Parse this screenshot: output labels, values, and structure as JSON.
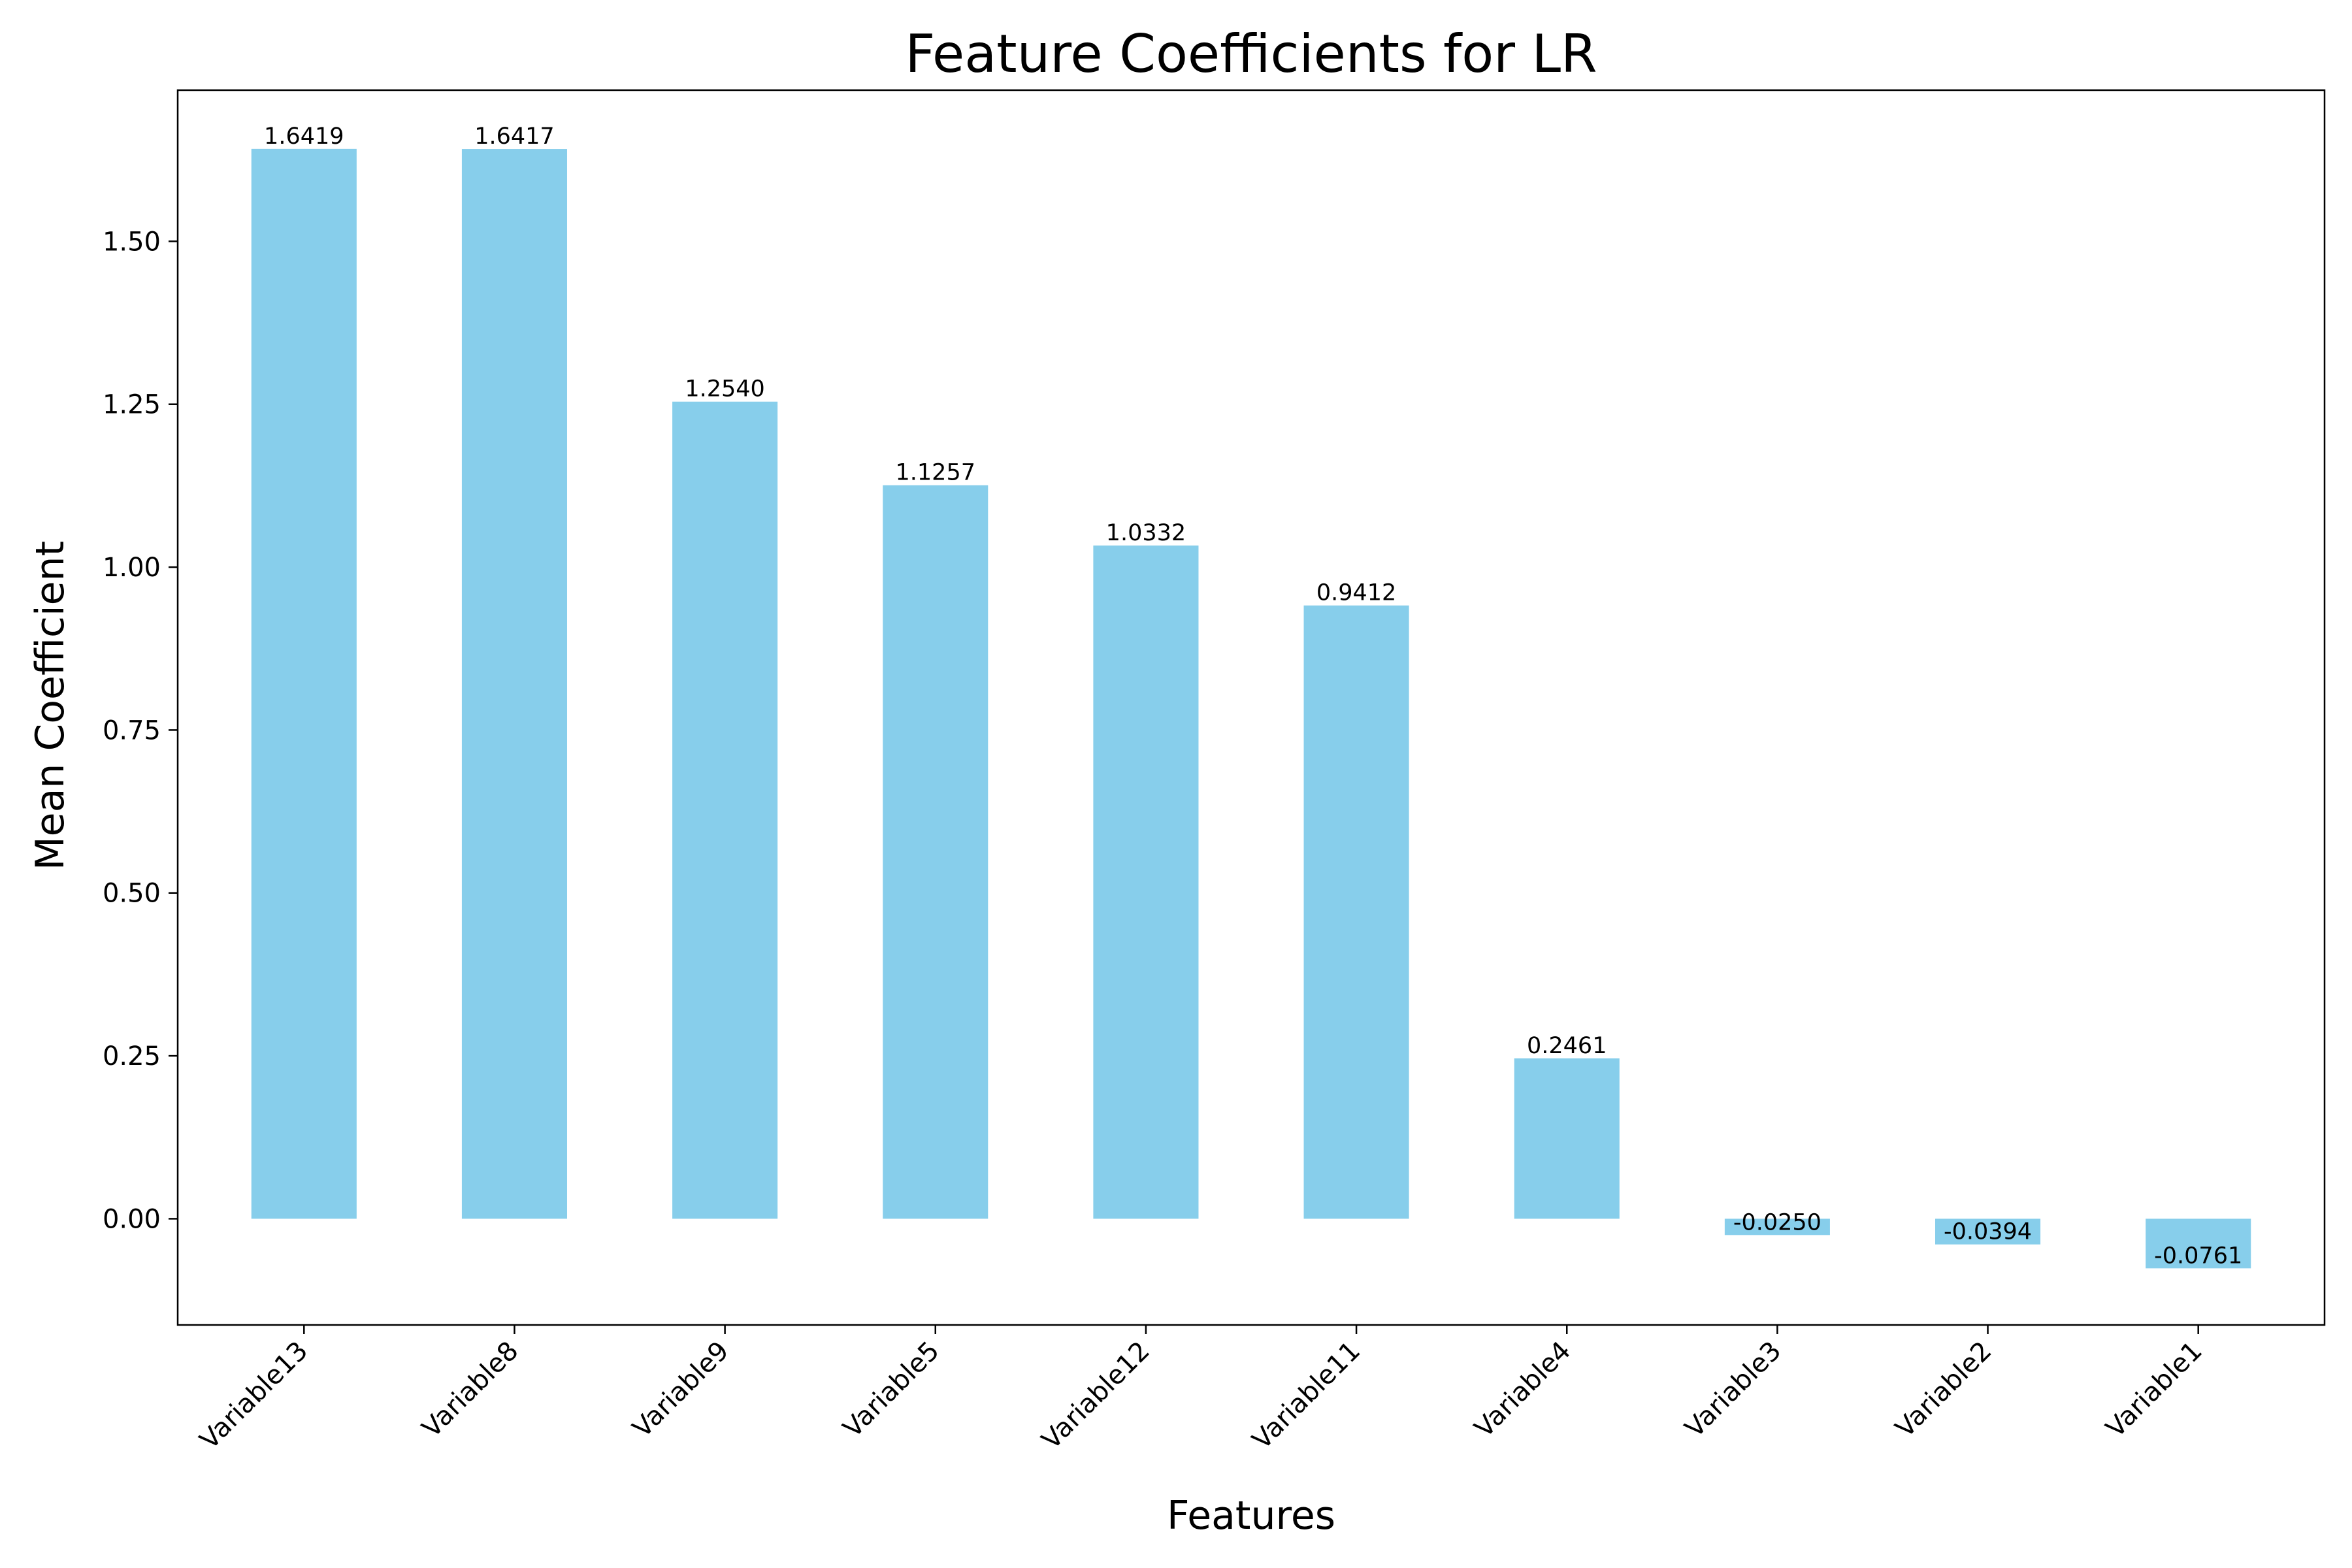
{
  "chart_data": {
    "type": "bar",
    "title": "Feature Coefficients for LR",
    "xlabel": "Features",
    "ylabel": "Mean Coefficient",
    "categories": [
      "Variable13",
      "Variable8",
      "Variable9",
      "Variable5",
      "Variable12",
      "Variable11",
      "Variable4",
      "Variable3",
      "Variable2",
      "Variable1"
    ],
    "values": [
      1.6419,
      1.6417,
      1.254,
      1.1257,
      1.0332,
      0.9412,
      0.2461,
      -0.025,
      -0.0394,
      -0.0761
    ],
    "value_labels": [
      "1.6419",
      "1.6417",
      "1.2540",
      "1.1257",
      "1.0332",
      "0.9412",
      "0.2461",
      "-0.0250",
      "-0.0394",
      "-0.0761"
    ],
    "ylim": [
      -0.163,
      1.732
    ],
    "yticks": [
      0.0,
      0.25,
      0.5,
      0.75,
      1.0,
      1.25,
      1.5
    ],
    "ytick_labels": [
      "0.00",
      "0.25",
      "0.50",
      "0.75",
      "1.00",
      "1.25",
      "1.50"
    ],
    "bar_color": "#87CEEB",
    "grid": false,
    "legend": "none"
  }
}
